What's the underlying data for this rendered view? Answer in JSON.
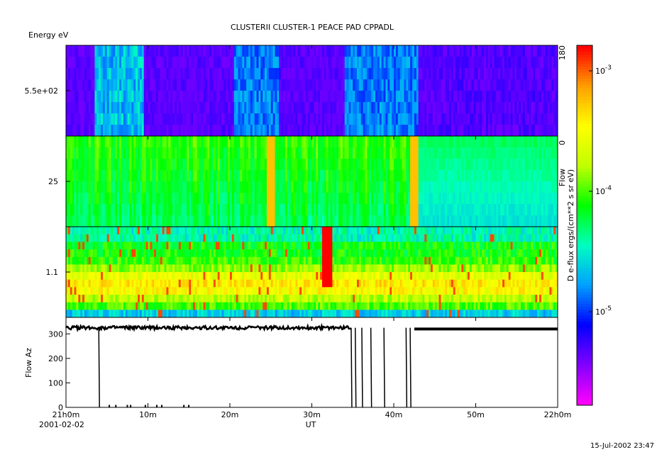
{
  "chart_data": {
    "type": "heatmap",
    "title": "CLUSTERII CLUSTER-1 PEACE PAD CPPADL",
    "ylabel_top": "Energy eV",
    "time_axis": {
      "start_label": "21h0m",
      "end_label": "22h0m",
      "ticks": [
        "21h0m",
        "10m",
        "20m",
        "30m",
        "40m",
        "50m",
        "22h0m"
      ],
      "tick_minutes": [
        0,
        10,
        20,
        30,
        40,
        50,
        60
      ],
      "date_label": "2001-02-02",
      "xlabel": "UT",
      "range_minutes": [
        0,
        60
      ]
    },
    "panels": [
      {
        "energy_label": "5.5e+02",
        "flow_ticks": [
          "180",
          "",
          ""
        ],
        "level": 0.28,
        "variability": 0.08,
        "bands": 8
      },
      {
        "energy_label": "25",
        "flow_ticks": [
          "0"
        ],
        "flow_label": "Flow",
        "level": 0.58,
        "variability": 0.05,
        "bands": 8
      },
      {
        "energy_label": "1.1",
        "level": 0.62,
        "variability": 0.12,
        "bands": 12
      }
    ],
    "spectrogram_notes": {
      "panel1_hot_intervals_minutes": [
        [
          3.5,
          9.5
        ],
        [
          20.5,
          26
        ],
        [
          34,
          43
        ],
        [
          45,
          60
        ]
      ],
      "panel2_spike_minutes": [
        25.0,
        42.5
      ],
      "panel3_hot_interval_minutes": [
        31.2,
        32.6
      ]
    },
    "colorbar": {
      "label": "D e-flux ergs/(cm**2 s sr eV)",
      "ticks": [
        "10^-3",
        "10^-4",
        "10^-5"
      ],
      "scale": "log",
      "colors": [
        "#ff00ff",
        "#8000ff",
        "#0000ff",
        "#00a0ff",
        "#00ffc0",
        "#00ff00",
        "#c0ff00",
        "#ffff00",
        "#ffa000",
        "#ff0000"
      ]
    },
    "flow_az_panel": {
      "ylabel": "Flow Az",
      "ylim": [
        0,
        350
      ],
      "yticks": [
        0,
        100,
        200,
        300
      ],
      "baseline_value": 325,
      "segments": [
        {
          "x": [
            0,
            4.0
          ],
          "y": 325
        },
        {
          "x": [
            4.0,
            34.8
          ],
          "y": 325
        },
        {
          "x": [
            42.5,
            60
          ],
          "y": 320
        }
      ],
      "drops_minutes": [
        4.0,
        34.8,
        35.3,
        36.1,
        37.2,
        38.8,
        41.5,
        42.0
      ],
      "dot_minutes_low": [
        5.2,
        6.0,
        7.4,
        7.8,
        9.6,
        11.0,
        11.6,
        14.3,
        14.9
      ]
    },
    "timestamp": "15-Jul-2002 23:47"
  }
}
